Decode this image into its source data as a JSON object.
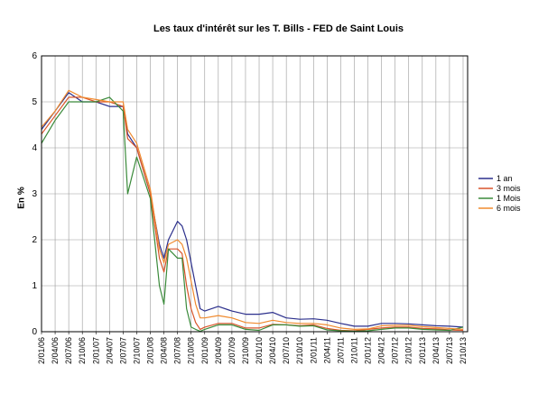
{
  "chart_data": {
    "type": "line",
    "title": "Les taux d'intérêt sur les T. Bills - FED de Saint Louis",
    "xlabel": "",
    "ylabel": "En %",
    "ylim": [
      0,
      6
    ],
    "yticks": [
      "0",
      "1",
      "2",
      "3",
      "4",
      "5",
      "6"
    ],
    "grid": true,
    "legend_position": "right",
    "x_tick_labels": [
      "2/01/06",
      "2/04/06",
      "2/07/06",
      "2/10/06",
      "2/01/07",
      "2/04/07",
      "2/07/07",
      "2/10/07",
      "2/01/08",
      "2/04/08",
      "2/07/08",
      "2/10/08",
      "2/01/09",
      "2/04/09",
      "2/07/09",
      "2/10/09",
      "2/01/10",
      "2/04/10",
      "2/07/10",
      "2/10/10",
      "2/01/11",
      "2/04/11",
      "2/07/11",
      "2/10/11",
      "2/01/12",
      "2/04/12",
      "2/07/12",
      "2/10/12",
      "2/01/13",
      "2/04/13",
      "2/07/13",
      "2/10/13"
    ],
    "x": [
      "2006-01",
      "2006-04",
      "2006-07",
      "2006-10",
      "2007-01",
      "2007-04",
      "2007-07",
      "2007-08",
      "2007-10",
      "2008-01",
      "2008-03",
      "2008-04",
      "2008-05",
      "2008-07",
      "2008-08",
      "2008-09",
      "2008-10",
      "2008-11",
      "2008-12",
      "2009-01",
      "2009-04",
      "2009-07",
      "2009-10",
      "2010-01",
      "2010-04",
      "2010-07",
      "2010-10",
      "2011-01",
      "2011-04",
      "2011-07",
      "2011-10",
      "2012-01",
      "2012-04",
      "2012-07",
      "2012-10",
      "2013-01",
      "2013-04",
      "2013-07",
      "2013-10"
    ],
    "series": [
      {
        "name": "1 an",
        "color": "#2b2f8c",
        "values": [
          4.4,
          4.8,
          5.2,
          5.0,
          5.0,
          4.9,
          4.9,
          4.3,
          4.0,
          3.0,
          1.9,
          1.6,
          2.0,
          2.4,
          2.3,
          2.0,
          1.5,
          1.0,
          0.5,
          0.45,
          0.55,
          0.45,
          0.38,
          0.38,
          0.42,
          0.3,
          0.27,
          0.28,
          0.25,
          0.18,
          0.12,
          0.12,
          0.18,
          0.18,
          0.17,
          0.15,
          0.13,
          0.12,
          0.1
        ]
      },
      {
        "name": "3 mois",
        "color": "#d9542a",
        "values": [
          4.3,
          4.7,
          5.1,
          5.1,
          5.0,
          5.0,
          4.9,
          4.2,
          4.0,
          3.0,
          1.6,
          1.3,
          1.8,
          1.8,
          1.7,
          1.0,
          0.5,
          0.2,
          0.05,
          0.1,
          0.18,
          0.18,
          0.08,
          0.08,
          0.16,
          0.15,
          0.13,
          0.15,
          0.07,
          0.03,
          0.02,
          0.05,
          0.08,
          0.1,
          0.1,
          0.07,
          0.06,
          0.04,
          0.03
        ]
      },
      {
        "name": "1 Mois",
        "color": "#3a8a3a",
        "values": [
          4.1,
          4.6,
          5.0,
          5.0,
          5.0,
          5.1,
          4.8,
          3.0,
          3.8,
          2.9,
          1.0,
          0.6,
          1.8,
          1.6,
          1.6,
          0.5,
          0.1,
          0.05,
          0.01,
          0.05,
          0.15,
          0.15,
          0.05,
          0.03,
          0.15,
          0.15,
          0.12,
          0.13,
          0.04,
          0.02,
          0.01,
          0.02,
          0.05,
          0.08,
          0.08,
          0.05,
          0.04,
          0.03,
          0.1
        ]
      },
      {
        "name": "6 mois",
        "color": "#f08a2e",
        "values": [
          4.45,
          4.8,
          5.25,
          5.1,
          5.05,
          5.0,
          5.0,
          4.4,
          4.1,
          3.1,
          1.8,
          1.5,
          1.9,
          2.0,
          1.9,
          1.6,
          1.1,
          0.6,
          0.3,
          0.3,
          0.35,
          0.3,
          0.2,
          0.18,
          0.25,
          0.2,
          0.18,
          0.18,
          0.15,
          0.08,
          0.05,
          0.06,
          0.13,
          0.14,
          0.14,
          0.11,
          0.09,
          0.07,
          0.05
        ]
      }
    ]
  }
}
